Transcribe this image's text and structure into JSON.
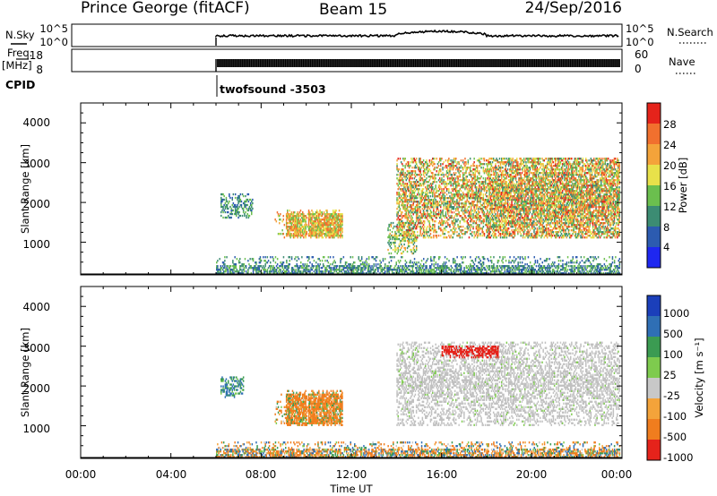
{
  "header": {
    "radar": "Prince George (fitACF)",
    "beam": "Beam 15",
    "date": "24/Sep/2016"
  },
  "strip": {
    "nsky_label": "N.Sky",
    "nsky_ticks": [
      "10^5",
      "10^0"
    ],
    "nsearch_label": "N.Search",
    "nsearch_ticks": [
      "10^5",
      "10^0"
    ],
    "freq_label_1": "Freq.",
    "freq_label_2": "[MHz]",
    "freq_ticks": [
      "18",
      "8"
    ],
    "nave_label": "Nave",
    "nave_ticks": [
      "60",
      "0"
    ],
    "cpid_label": "CPID",
    "cpid_value": "twofsound -3503"
  },
  "x_ticks": [
    "00:00",
    "04:00",
    "08:00",
    "12:00",
    "16:00",
    "20:00",
    "00:00"
  ],
  "x_label": "Time UT",
  "power_panel": {
    "ylabel": "Slant Range [km]",
    "yticks": [
      "1000",
      "2000",
      "3000",
      "4000"
    ],
    "colorbar_label": "Power [dB]",
    "colorbar_ticks": [
      "4",
      "8",
      "12",
      "16",
      "20",
      "24",
      "28"
    ]
  },
  "velocity_panel": {
    "ylabel": "Slant Range [km]",
    "yticks": [
      "1000",
      "2000",
      "3000",
      "4000"
    ],
    "colorbar_label": "Velocity [m s⁻¹]",
    "colorbar_ticks": [
      "1000",
      "500",
      "100",
      "25",
      "-25",
      "-100",
      "-500",
      "-1000"
    ]
  },
  "colors": {
    "power_scale": [
      "#1e27f0",
      "#2c5bb0",
      "#3c8c73",
      "#6bbf4e",
      "#e8e14a",
      "#f4a33a",
      "#f1702e",
      "#e5231b"
    ],
    "velocity_scale": [
      "#1b3fba",
      "#2f6fb5",
      "#3b9b52",
      "#7ecb4e",
      "#c8c8c8",
      "#f4a33a",
      "#f07d1e",
      "#e5231b"
    ],
    "groundscatter": "#c0c0c0"
  },
  "chart_data": [
    {
      "type": "heatmap",
      "title": "Power",
      "x_axis": "Time UT",
      "x_range_hours": [
        0,
        24
      ],
      "ylabel": "Slant Range [km]",
      "ylim_km": [
        180,
        4500
      ],
      "zlabel": "Power [dB]",
      "zlim": [
        0,
        32
      ],
      "data_start_hour": 6.0,
      "features": [
        {
          "time_h": [
            6.2,
            7.6
          ],
          "range_km": [
            1600,
            2200
          ],
          "power_db": [
            6,
            14
          ]
        },
        {
          "time_h": [
            8.6,
            11.6
          ],
          "range_km": [
            1100,
            1800
          ],
          "power_db": [
            12,
            28
          ]
        },
        {
          "time_h": [
            13.6,
            14.9
          ],
          "range_km": [
            700,
            1500
          ],
          "power_db": [
            8,
            24
          ]
        },
        {
          "time_h": [
            14.0,
            23.9
          ],
          "range_km": [
            1100,
            3100
          ],
          "power_db": [
            8,
            30
          ]
        },
        {
          "time_h": [
            6.0,
            23.9
          ],
          "range_km": [
            200,
            650
          ],
          "power_db": [
            4,
            16
          ]
        }
      ]
    },
    {
      "type": "heatmap",
      "title": "Velocity",
      "x_axis": "Time UT",
      "x_range_hours": [
        0,
        24
      ],
      "ylabel": "Slant Range [km]",
      "ylim_km": [
        180,
        4500
      ],
      "zlabel": "Velocity [m s-1]",
      "zlim": [
        -1000,
        1000
      ],
      "data_start_hour": 6.0,
      "features": [
        {
          "time_h": [
            6.2,
            7.2
          ],
          "range_km": [
            1700,
            2200
          ],
          "velocity_ms": [
            0,
            200
          ]
        },
        {
          "time_h": [
            8.6,
            11.6
          ],
          "range_km": [
            1000,
            1900
          ],
          "velocity_ms": [
            -500,
            100
          ]
        },
        {
          "time_h": [
            14.0,
            23.9
          ],
          "range_km": [
            1000,
            3100
          ],
          "velocity_ms": [
            -25,
            25
          ],
          "groundscatter": true
        },
        {
          "time_h": [
            16.0,
            18.5
          ],
          "range_km": [
            2700,
            3000
          ],
          "velocity_ms": [
            -1000,
            -500
          ]
        },
        {
          "time_h": [
            6.0,
            23.9
          ],
          "range_km": [
            200,
            600
          ],
          "velocity_ms": [
            -300,
            200
          ]
        }
      ]
    }
  ]
}
